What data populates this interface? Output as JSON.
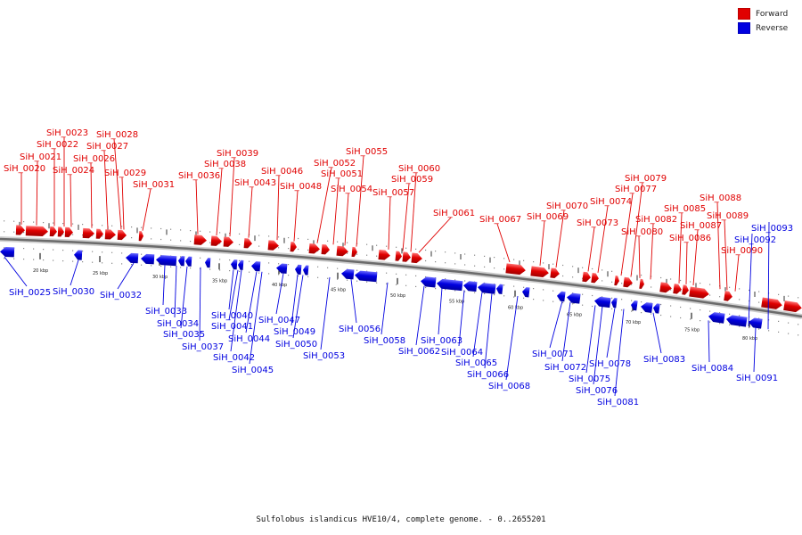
{
  "legend": [
    {
      "label": "Forward",
      "color": "#e00000"
    },
    {
      "label": "Reverse",
      "color": "#0000e0"
    }
  ],
  "caption": "Sulfolobus islandicus HVE10/4, complete genome. - 0..2655201",
  "ticks": [
    "20 kbp",
    "25 kbp",
    "30 kbp",
    "35 kbp",
    "40 kbp",
    "45 kbp",
    "50 kbp",
    "55 kbp",
    "60 kbp",
    "65 kbp",
    "70 kbp",
    "75 kbp",
    "80 kbp"
  ],
  "forward_labels": [
    "SiH_0020",
    "SiH_0021",
    "SiH_0022",
    "SiH_0023",
    "SiH_0024",
    "SiH_0026",
    "SiH_0027",
    "SiH_0028",
    "SiH_0029",
    "SiH_0031",
    "SiH_0036",
    "SiH_0038",
    "SiH_0039",
    "SiH_0043",
    "SiH_0046",
    "SiH_0048",
    "SiH_0052",
    "SiH_0051",
    "SiH_0054",
    "SiH_0055",
    "SiH_0057",
    "SiH_0059",
    "SiH_0060",
    "SiH_0061",
    "SiH_0067",
    "SiH_0069",
    "SiH_0070",
    "SiH_0073",
    "SiH_0074",
    "SiH_0077",
    "SiH_0079",
    "SiH_0080",
    "SiH_0082",
    "SiH_0085",
    "SiH_0086",
    "SiH_0087",
    "SiH_0088",
    "SiH_0089",
    "SiH_0090"
  ],
  "reverse_labels": [
    "SiH_0025",
    "SiH_0030",
    "SiH_0032",
    "SiH_0033",
    "SiH_0034",
    "SiH_0035",
    "SiH_0037",
    "SiH_0040",
    "SiH_0041",
    "SiH_0042",
    "SiH_0044",
    "SiH_0045",
    "SiH_0047",
    "SiH_0049",
    "SiH_0050",
    "SiH_0053",
    "SiH_0056",
    "SiH_0058",
    "SiH_0062",
    "SiH_0063",
    "SiH_0064",
    "SiH_0065",
    "SiH_0066",
    "SiH_0068",
    "SiH_0071",
    "SiH_0072",
    "SiH_0075",
    "SiH_0076",
    "SiH_0078",
    "SiH_0081",
    "SiH_0083",
    "SiH_0084",
    "SiH_0091",
    "SiH_0092",
    "SiH_0093"
  ]
}
